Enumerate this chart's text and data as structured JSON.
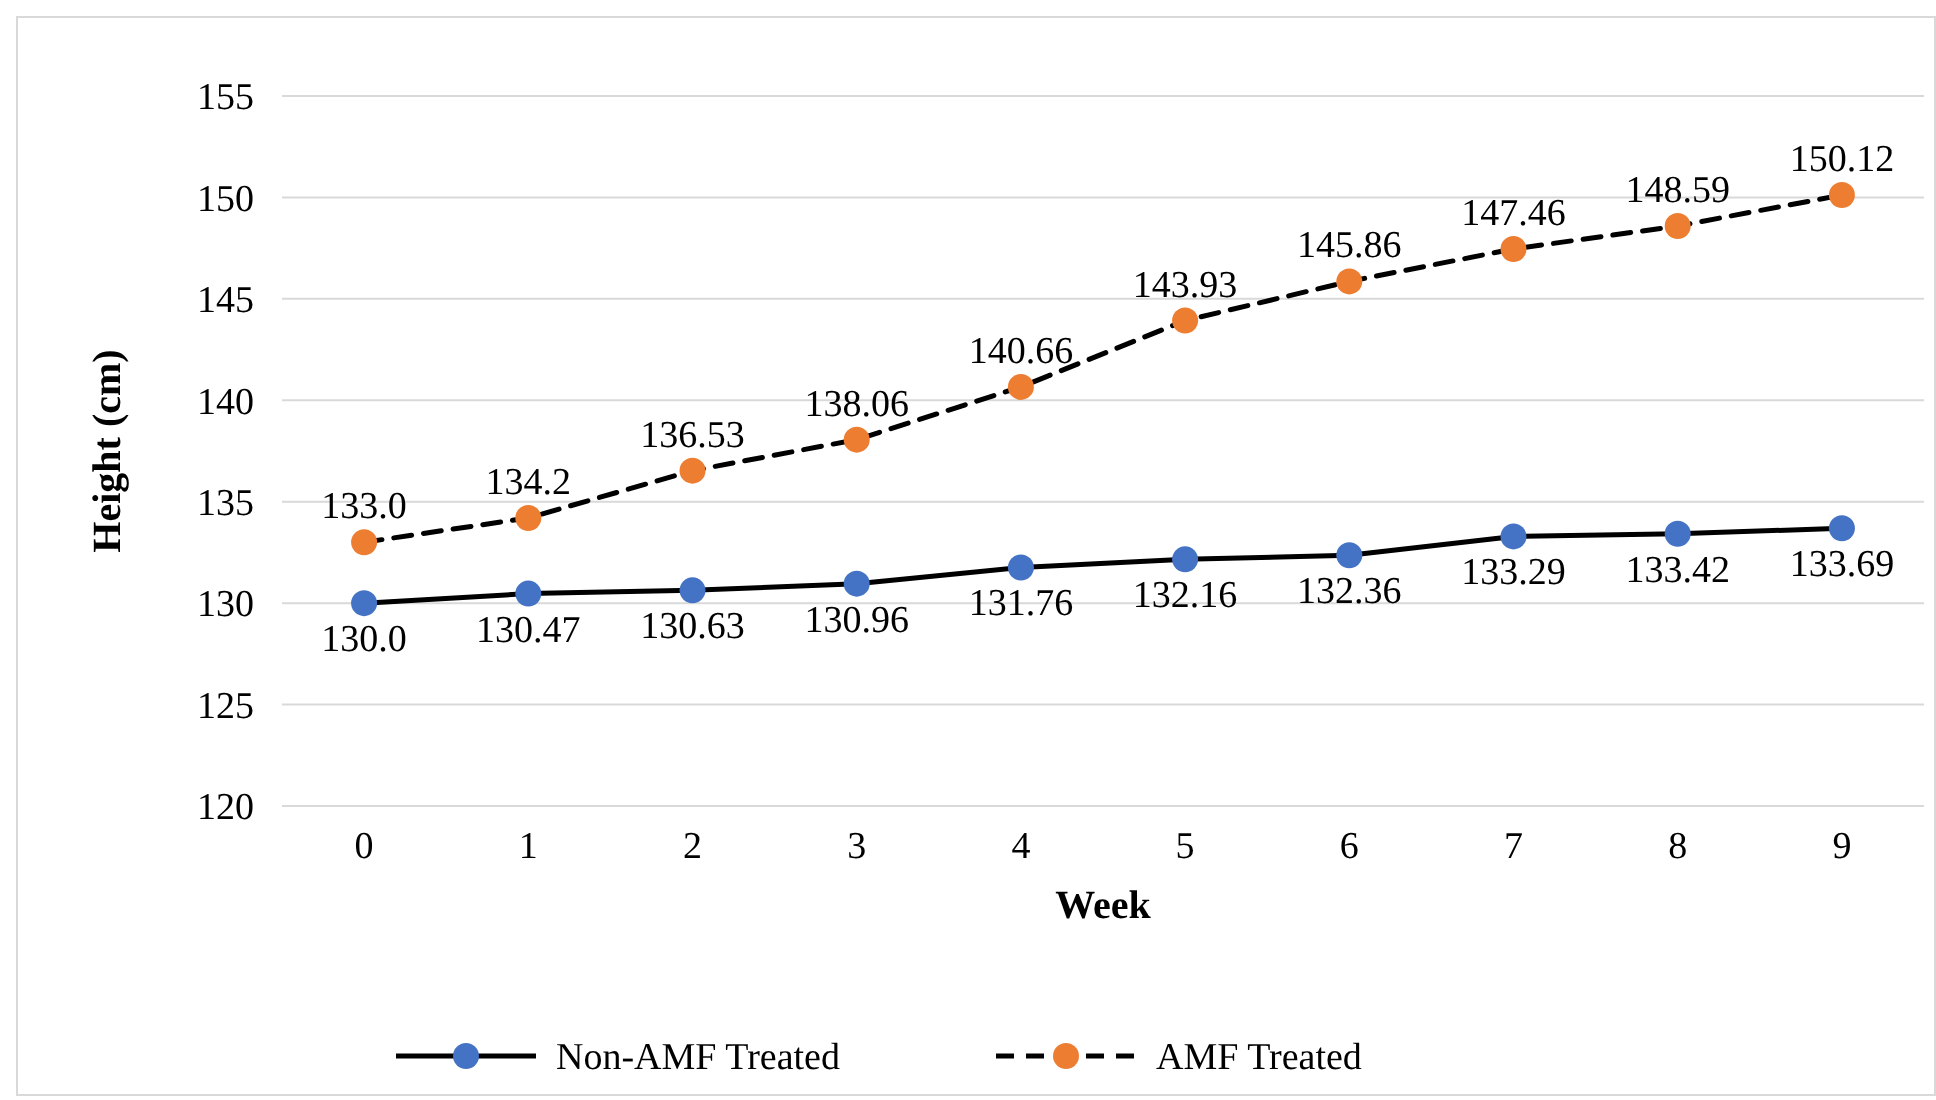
{
  "chart_data": {
    "type": "line",
    "xlabel": "Week",
    "ylabel": "Height (cm)",
    "categories": [
      "0",
      "1",
      "2",
      "3",
      "4",
      "5",
      "6",
      "7",
      "8",
      "9"
    ],
    "ylim": [
      120,
      155
    ],
    "yticks": [
      120,
      125,
      130,
      135,
      140,
      145,
      150,
      155
    ],
    "grid": "y",
    "legend": "bottom",
    "marker": "circle",
    "series": [
      {
        "name": "Non-AMF Treated",
        "color": "#4472c4",
        "line_style": "solid",
        "values": [
          130.0,
          130.47,
          130.63,
          130.96,
          131.76,
          132.16,
          132.36,
          133.29,
          133.42,
          133.69
        ],
        "value_labels": [
          "130.0",
          "130.47",
          "130.63",
          "130.96",
          "131.76",
          "132.16",
          "132.36",
          "133.29",
          "133.42",
          "133.69"
        ]
      },
      {
        "name": "AMF Treated",
        "color": "#ed7d31",
        "line_style": "dashed",
        "values": [
          133.0,
          134.2,
          136.53,
          138.06,
          140.66,
          143.93,
          145.86,
          147.46,
          148.59,
          150.12
        ],
        "value_labels": [
          "133.0",
          "134.2",
          "136.53",
          "138.06",
          "140.66",
          "143.93",
          "145.86",
          "147.46",
          "148.59",
          "150.12"
        ]
      }
    ]
  }
}
